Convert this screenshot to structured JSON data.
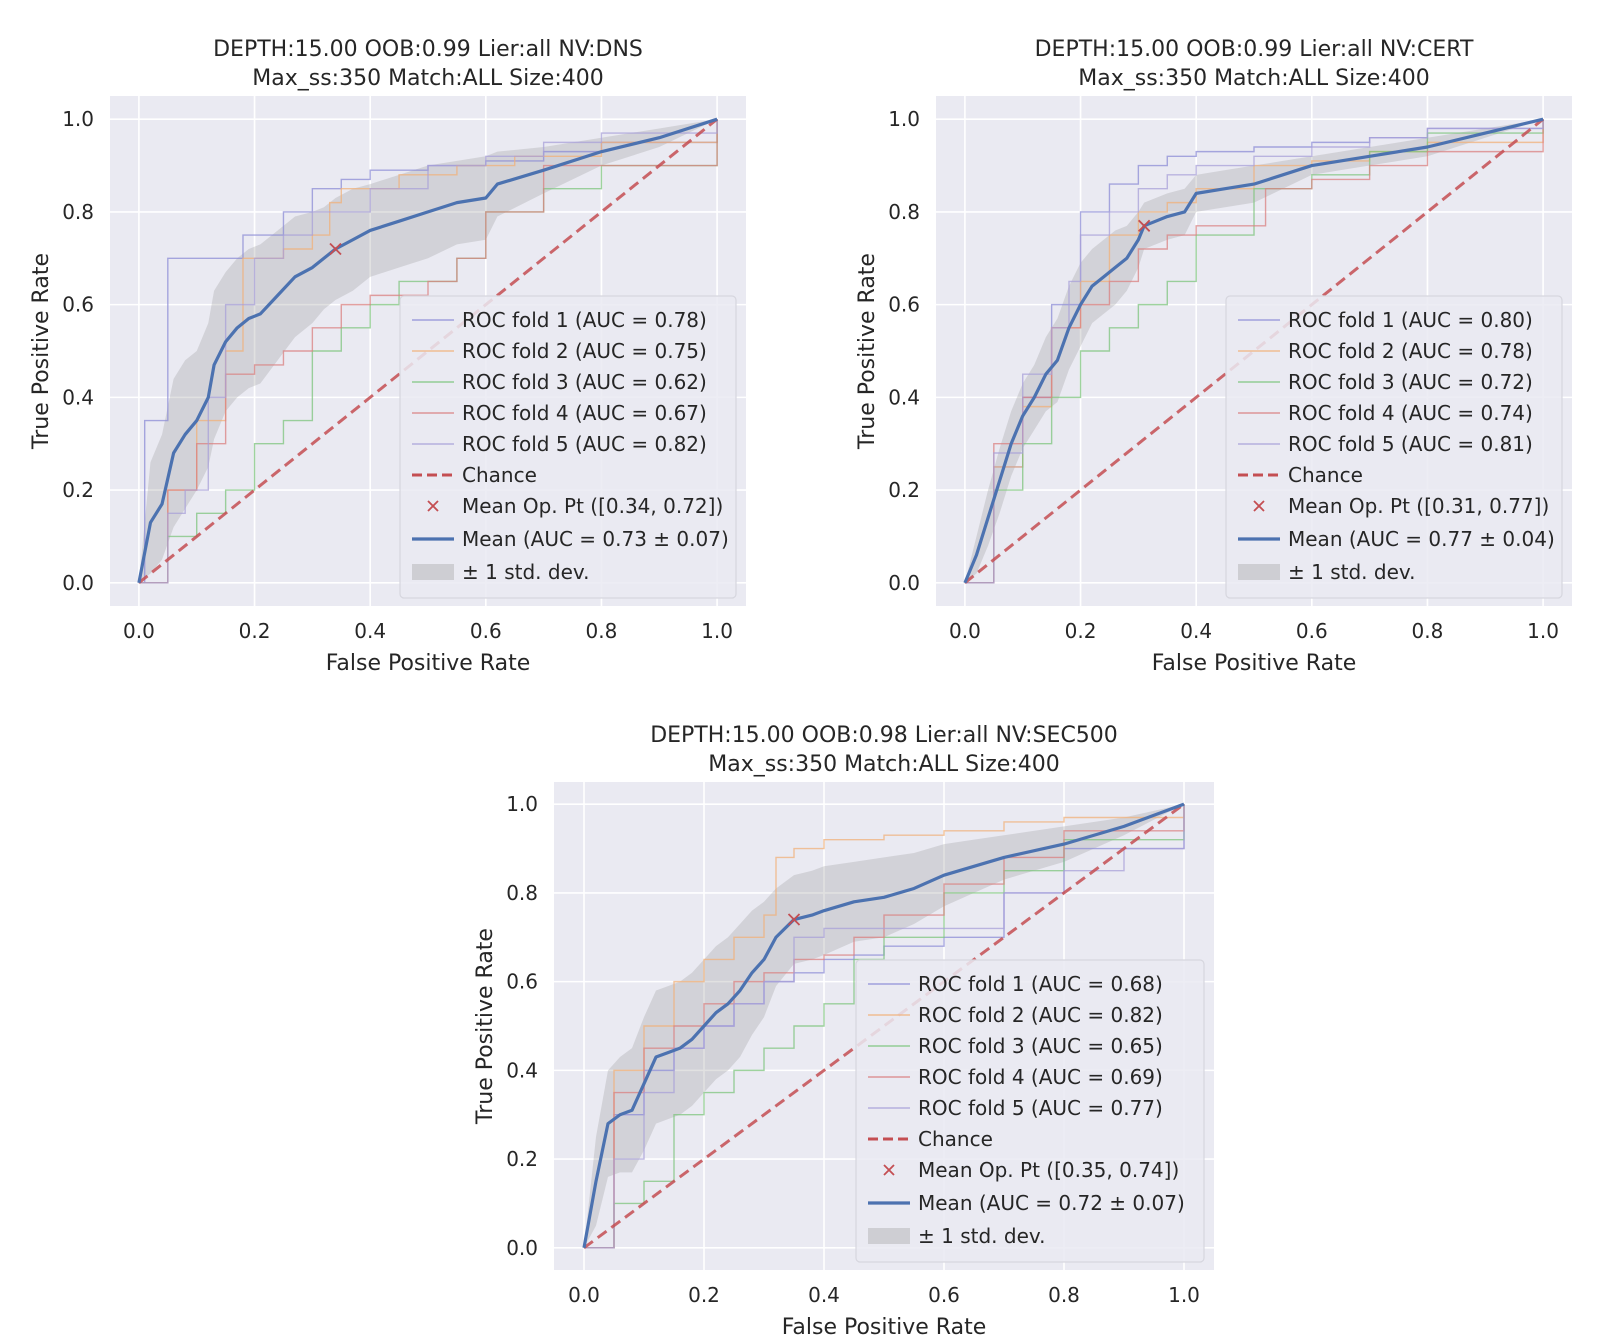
{
  "colors": {
    "plot_bg": "#EAEAF2",
    "grid": "#FFFFFF",
    "fold_colors": [
      "#8C8CD6",
      "#F0B07A",
      "#7DC47D",
      "#D98080",
      "#A8A0D8"
    ],
    "chance": "#C44E52",
    "mean": "#4C72B0",
    "band": "#9A9A9A",
    "text": "#262626"
  },
  "chart_data": [
    {
      "type": "line",
      "title_line1": "DEPTH:15.00 OOB:0.99 Lier:all NV:DNS",
      "title_line2": "Max_ss:350 Match:ALL Size:400",
      "xlabel": "False Positive Rate",
      "ylabel": "True Positive Rate",
      "xlim": [
        -0.05,
        1.05
      ],
      "ylim": [
        -0.05,
        1.05
      ],
      "xticks": [
        "0.0",
        "0.2",
        "0.4",
        "0.6",
        "0.8",
        "1.0"
      ],
      "yticks": [
        "0.0",
        "0.2",
        "0.4",
        "0.6",
        "0.8",
        "1.0"
      ],
      "legend_position": "lower-right",
      "folds": [
        {
          "name": "ROC fold 1 (AUC = 0.78)",
          "x": [
            0,
            0.01,
            0.05,
            0.05,
            0.13,
            0.18,
            0.2,
            0.25,
            0.3,
            0.35,
            0.4,
            0.5,
            0.6,
            0.7,
            0.8,
            1.0
          ],
          "y": [
            0,
            0.35,
            0.45,
            0.7,
            0.7,
            0.75,
            0.75,
            0.8,
            0.85,
            0.87,
            0.89,
            0.9,
            0.91,
            0.93,
            0.95,
            1.0
          ]
        },
        {
          "name": "ROC fold 2 (AUC = 0.75)",
          "x": [
            0,
            0.05,
            0.1,
            0.15,
            0.18,
            0.25,
            0.3,
            0.33,
            0.35,
            0.45,
            0.55,
            0.65,
            0.8,
            1.0
          ],
          "y": [
            0,
            0.2,
            0.35,
            0.5,
            0.7,
            0.72,
            0.75,
            0.82,
            0.85,
            0.88,
            0.9,
            0.92,
            0.95,
            1.0
          ]
        },
        {
          "name": "ROC fold 3 (AUC = 0.62)",
          "x": [
            0,
            0.05,
            0.1,
            0.15,
            0.2,
            0.25,
            0.3,
            0.35,
            0.4,
            0.45,
            0.55,
            0.6,
            0.7,
            0.8,
            1.0
          ],
          "y": [
            0,
            0.1,
            0.15,
            0.2,
            0.3,
            0.35,
            0.5,
            0.55,
            0.6,
            0.65,
            0.7,
            0.8,
            0.85,
            0.9,
            1.0
          ]
        },
        {
          "name": "ROC fold 4 (AUC = 0.67)",
          "x": [
            0,
            0.05,
            0.1,
            0.15,
            0.2,
            0.25,
            0.3,
            0.35,
            0.4,
            0.5,
            0.55,
            0.6,
            0.7,
            1.0
          ],
          "y": [
            0,
            0.2,
            0.3,
            0.45,
            0.47,
            0.5,
            0.55,
            0.6,
            0.62,
            0.65,
            0.7,
            0.8,
            0.9,
            1.0
          ]
        },
        {
          "name": "ROC fold 5 (AUC = 0.82)",
          "x": [
            0,
            0.05,
            0.08,
            0.12,
            0.15,
            0.2,
            0.25,
            0.3,
            0.4,
            0.5,
            0.6,
            0.7,
            0.8,
            1.0
          ],
          "y": [
            0,
            0.15,
            0.2,
            0.4,
            0.6,
            0.7,
            0.75,
            0.8,
            0.85,
            0.9,
            0.92,
            0.95,
            0.97,
            1.0
          ]
        }
      ],
      "mean": {
        "name": "Mean (AUC = 0.73 ± 0.07)",
        "x": [
          0,
          0.02,
          0.04,
          0.06,
          0.08,
          0.1,
          0.12,
          0.13,
          0.15,
          0.17,
          0.19,
          0.21,
          0.24,
          0.27,
          0.3,
          0.32,
          0.34,
          0.37,
          0.4,
          0.45,
          0.5,
          0.55,
          0.6,
          0.62,
          0.7,
          0.8,
          0.9,
          1.0
        ],
        "y": [
          0,
          0.13,
          0.17,
          0.28,
          0.32,
          0.35,
          0.4,
          0.47,
          0.52,
          0.55,
          0.57,
          0.58,
          0.62,
          0.66,
          0.68,
          0.7,
          0.72,
          0.74,
          0.76,
          0.78,
          0.8,
          0.82,
          0.83,
          0.86,
          0.89,
          0.93,
          0.96,
          1.0
        ]
      },
      "band_upper": [
        0,
        0.26,
        0.32,
        0.44,
        0.48,
        0.5,
        0.56,
        0.63,
        0.67,
        0.7,
        0.72,
        0.73,
        0.76,
        0.79,
        0.8,
        0.81,
        0.83,
        0.85,
        0.86,
        0.88,
        0.9,
        0.91,
        0.92,
        0.93,
        0.94,
        0.96,
        0.98,
        1.0
      ],
      "band_lower": [
        0,
        0.02,
        0.05,
        0.12,
        0.16,
        0.2,
        0.25,
        0.31,
        0.37,
        0.4,
        0.42,
        0.43,
        0.48,
        0.53,
        0.56,
        0.59,
        0.61,
        0.63,
        0.66,
        0.68,
        0.7,
        0.73,
        0.74,
        0.79,
        0.84,
        0.9,
        0.94,
        1.0
      ],
      "chance": {
        "name": "Chance",
        "x": [
          0,
          1
        ],
        "y": [
          0,
          1
        ]
      },
      "op_point": {
        "name": "Mean Op. Pt ([0.34, 0.72])",
        "x": 0.34,
        "y": 0.72
      },
      "std_label": "± 1 std. dev."
    },
    {
      "type": "line",
      "title_line1": "DEPTH:15.00 OOB:0.99 Lier:all NV:CERT",
      "title_line2": "Max_ss:350 Match:ALL Size:400",
      "xlabel": "False Positive Rate",
      "ylabel": "True Positive Rate",
      "xlim": [
        -0.05,
        1.05
      ],
      "ylim": [
        -0.05,
        1.05
      ],
      "xticks": [
        "0.0",
        "0.2",
        "0.4",
        "0.6",
        "0.8",
        "1.0"
      ],
      "yticks": [
        "0.0",
        "0.2",
        "0.4",
        "0.6",
        "0.8",
        "1.0"
      ],
      "legend_position": "lower-right",
      "folds": [
        {
          "name": "ROC fold 1 (AUC = 0.80)",
          "x": [
            0,
            0.05,
            0.1,
            0.15,
            0.2,
            0.25,
            0.3,
            0.35,
            0.4,
            0.5,
            0.6,
            0.7,
            0.8,
            1.0
          ],
          "y": [
            0,
            0.25,
            0.4,
            0.6,
            0.8,
            0.86,
            0.9,
            0.92,
            0.93,
            0.94,
            0.95,
            0.96,
            0.98,
            1.0
          ]
        },
        {
          "name": "ROC fold 2 (AUC = 0.78)",
          "x": [
            0,
            0.05,
            0.1,
            0.15,
            0.2,
            0.25,
            0.3,
            0.35,
            0.4,
            0.5,
            0.6,
            0.7,
            0.8,
            1.0
          ],
          "y": [
            0,
            0.25,
            0.38,
            0.55,
            0.65,
            0.75,
            0.8,
            0.82,
            0.85,
            0.9,
            0.91,
            0.93,
            0.95,
            1.0
          ]
        },
        {
          "name": "ROC fold 3 (AUC = 0.72)",
          "x": [
            0,
            0.05,
            0.1,
            0.15,
            0.2,
            0.25,
            0.3,
            0.35,
            0.4,
            0.5,
            0.6,
            0.7,
            0.8,
            1.0
          ],
          "y": [
            0,
            0.2,
            0.3,
            0.4,
            0.5,
            0.55,
            0.6,
            0.65,
            0.75,
            0.85,
            0.88,
            0.93,
            0.97,
            1.0
          ]
        },
        {
          "name": "ROC fold 4 (AUC = 0.74)",
          "x": [
            0,
            0.05,
            0.1,
            0.15,
            0.2,
            0.25,
            0.3,
            0.35,
            0.4,
            0.5,
            0.52,
            0.6,
            0.7,
            0.8,
            1.0
          ],
          "y": [
            0,
            0.3,
            0.4,
            0.55,
            0.6,
            0.65,
            0.72,
            0.75,
            0.77,
            0.77,
            0.85,
            0.87,
            0.9,
            0.93,
            1.0
          ]
        },
        {
          "name": "ROC fold 5 (AUC = 0.81)",
          "x": [
            0,
            0.05,
            0.1,
            0.15,
            0.18,
            0.2,
            0.25,
            0.3,
            0.35,
            0.4,
            0.5,
            0.6,
            0.7,
            0.8,
            1.0
          ],
          "y": [
            0,
            0.28,
            0.45,
            0.55,
            0.65,
            0.75,
            0.8,
            0.85,
            0.88,
            0.9,
            0.92,
            0.94,
            0.96,
            0.98,
            1.0
          ]
        }
      ],
      "mean": {
        "name": "Mean (AUC = 0.77 ± 0.04)",
        "x": [
          0,
          0.02,
          0.04,
          0.06,
          0.08,
          0.1,
          0.12,
          0.14,
          0.16,
          0.18,
          0.2,
          0.22,
          0.24,
          0.26,
          0.28,
          0.3,
          0.31,
          0.33,
          0.35,
          0.38,
          0.4,
          0.45,
          0.5,
          0.55,
          0.6,
          0.65,
          0.7,
          0.8,
          0.9,
          1.0
        ],
        "y": [
          0,
          0.06,
          0.14,
          0.22,
          0.3,
          0.36,
          0.4,
          0.45,
          0.48,
          0.55,
          0.6,
          0.64,
          0.66,
          0.68,
          0.7,
          0.74,
          0.77,
          0.78,
          0.79,
          0.8,
          0.84,
          0.85,
          0.86,
          0.88,
          0.9,
          0.91,
          0.92,
          0.94,
          0.97,
          1.0
        ]
      },
      "band_upper": [
        0,
        0.1,
        0.2,
        0.29,
        0.37,
        0.43,
        0.47,
        0.53,
        0.57,
        0.64,
        0.69,
        0.72,
        0.74,
        0.76,
        0.77,
        0.8,
        0.82,
        0.83,
        0.84,
        0.85,
        0.88,
        0.89,
        0.9,
        0.91,
        0.92,
        0.93,
        0.94,
        0.96,
        0.98,
        1.0
      ],
      "band_lower": [
        0,
        0.02,
        0.08,
        0.15,
        0.23,
        0.29,
        0.33,
        0.37,
        0.39,
        0.46,
        0.51,
        0.56,
        0.58,
        0.6,
        0.63,
        0.68,
        0.72,
        0.73,
        0.74,
        0.75,
        0.8,
        0.81,
        0.82,
        0.85,
        0.88,
        0.89,
        0.9,
        0.92,
        0.96,
        1.0
      ],
      "chance": {
        "name": "Chance",
        "x": [
          0,
          1
        ],
        "y": [
          0,
          1
        ]
      },
      "op_point": {
        "name": "Mean Op. Pt ([0.31, 0.77])",
        "x": 0.31,
        "y": 0.77
      },
      "std_label": "± 1 std. dev."
    },
    {
      "type": "line",
      "title_line1": "DEPTH:15.00 OOB:0.98 Lier:all NV:SEC500",
      "title_line2": "Max_ss:350 Match:ALL Size:400",
      "xlabel": "False Positive Rate",
      "ylabel": "True Positive Rate",
      "xlim": [
        -0.05,
        1.05
      ],
      "ylim": [
        -0.05,
        1.05
      ],
      "xticks": [
        "0.0",
        "0.2",
        "0.4",
        "0.6",
        "0.8",
        "1.0"
      ],
      "yticks": [
        "0.0",
        "0.2",
        "0.4",
        "0.6",
        "0.8",
        "1.0"
      ],
      "legend_position": "lower-right",
      "folds": [
        {
          "name": "ROC fold 1 (AUC = 0.68)",
          "x": [
            0,
            0.05,
            0.1,
            0.15,
            0.2,
            0.25,
            0.3,
            0.35,
            0.4,
            0.45,
            0.5,
            0.6,
            0.7,
            0.8,
            1.0
          ],
          "y": [
            0,
            0.3,
            0.4,
            0.45,
            0.5,
            0.55,
            0.6,
            0.62,
            0.65,
            0.66,
            0.68,
            0.7,
            0.8,
            0.9,
            1.0
          ]
        },
        {
          "name": "ROC fold 2 (AUC = 0.82)",
          "x": [
            0,
            0.05,
            0.1,
            0.15,
            0.2,
            0.25,
            0.3,
            0.32,
            0.35,
            0.4,
            0.5,
            0.6,
            0.7,
            0.8,
            1.0
          ],
          "y": [
            0,
            0.4,
            0.5,
            0.6,
            0.65,
            0.7,
            0.75,
            0.88,
            0.9,
            0.92,
            0.93,
            0.94,
            0.96,
            0.97,
            1.0
          ]
        },
        {
          "name": "ROC fold 3 (AUC = 0.65)",
          "x": [
            0,
            0.05,
            0.1,
            0.15,
            0.2,
            0.25,
            0.3,
            0.35,
            0.4,
            0.45,
            0.5,
            0.6,
            0.7,
            0.8,
            1.0
          ],
          "y": [
            0,
            0.1,
            0.15,
            0.3,
            0.35,
            0.4,
            0.45,
            0.5,
            0.55,
            0.65,
            0.7,
            0.8,
            0.85,
            0.92,
            1.0
          ]
        },
        {
          "name": "ROC fold 4 (AUC = 0.69)",
          "x": [
            0,
            0.05,
            0.1,
            0.15,
            0.2,
            0.25,
            0.3,
            0.35,
            0.4,
            0.45,
            0.5,
            0.6,
            0.7,
            0.8,
            1.0
          ],
          "y": [
            0,
            0.35,
            0.45,
            0.5,
            0.55,
            0.6,
            0.62,
            0.65,
            0.66,
            0.7,
            0.75,
            0.82,
            0.88,
            0.94,
            1.0
          ]
        },
        {
          "name": "ROC fold 5 (AUC = 0.77)",
          "x": [
            0,
            0.05,
            0.1,
            0.15,
            0.2,
            0.25,
            0.3,
            0.35,
            0.4,
            0.5,
            0.6,
            0.7,
            0.8,
            0.9,
            1.0
          ],
          "y": [
            0,
            0.2,
            0.35,
            0.45,
            0.5,
            0.55,
            0.6,
            0.7,
            0.72,
            0.72,
            0.72,
            0.8,
            0.85,
            0.9,
            1.0
          ]
        }
      ],
      "mean": {
        "name": "Mean (AUC = 0.72 ± 0.07)",
        "x": [
          0,
          0.02,
          0.04,
          0.06,
          0.08,
          0.1,
          0.12,
          0.14,
          0.16,
          0.18,
          0.2,
          0.22,
          0.24,
          0.26,
          0.28,
          0.3,
          0.32,
          0.35,
          0.38,
          0.4,
          0.45,
          0.5,
          0.55,
          0.6,
          0.65,
          0.7,
          0.8,
          0.9,
          1.0
        ],
        "y": [
          0,
          0.15,
          0.28,
          0.3,
          0.31,
          0.37,
          0.43,
          0.44,
          0.45,
          0.47,
          0.5,
          0.53,
          0.55,
          0.58,
          0.62,
          0.65,
          0.7,
          0.74,
          0.75,
          0.76,
          0.78,
          0.79,
          0.81,
          0.84,
          0.86,
          0.88,
          0.91,
          0.95,
          1.0
        ]
      },
      "band_upper": [
        0,
        0.25,
        0.4,
        0.43,
        0.45,
        0.52,
        0.58,
        0.59,
        0.6,
        0.62,
        0.65,
        0.68,
        0.7,
        0.73,
        0.76,
        0.78,
        0.81,
        0.84,
        0.85,
        0.86,
        0.87,
        0.88,
        0.89,
        0.91,
        0.92,
        0.93,
        0.95,
        0.97,
        1.0
      ],
      "band_lower": [
        0,
        0.05,
        0.16,
        0.17,
        0.17,
        0.22,
        0.28,
        0.29,
        0.3,
        0.32,
        0.35,
        0.38,
        0.4,
        0.43,
        0.48,
        0.52,
        0.59,
        0.64,
        0.65,
        0.66,
        0.69,
        0.7,
        0.73,
        0.77,
        0.8,
        0.83,
        0.87,
        0.93,
        1.0
      ],
      "chance": {
        "name": "Chance",
        "x": [
          0,
          1
        ],
        "y": [
          0,
          1
        ]
      },
      "op_point": {
        "name": "Mean Op. Pt ([0.35, 0.74])",
        "x": 0.35,
        "y": 0.74
      },
      "std_label": "± 1 std. dev."
    }
  ]
}
